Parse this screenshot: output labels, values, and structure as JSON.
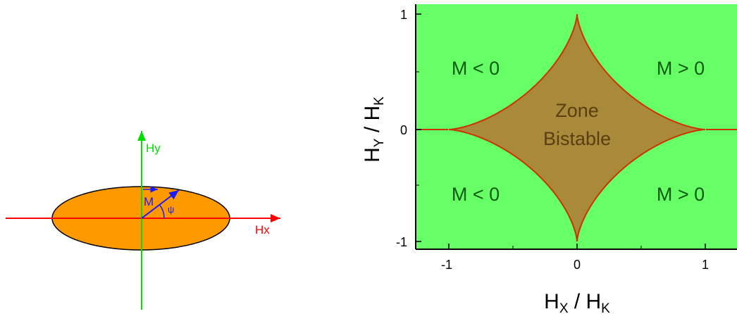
{
  "left_diagram": {
    "x_axis_label": "Hx",
    "y_axis_label": "Hy",
    "vector_label": "M",
    "angle_label": "ψ",
    "colors": {
      "ellipse_fill": "#ff9900",
      "x_axis": "#ff0000",
      "y_axis": "#00dd00",
      "vector": "#1a1aff"
    }
  },
  "right_diagram": {
    "zone_label_line1": "Zone",
    "zone_label_line2": "Bistable",
    "quadrant_top_left": "M < 0",
    "quadrant_top_right": "M > 0",
    "quadrant_bottom_left": "M < 0",
    "quadrant_bottom_right": "M > 0",
    "x_axis": {
      "main": "H",
      "sub": "X",
      "sep": " / H",
      "sub2": "K"
    },
    "y_axis": {
      "main": "H",
      "sub": "Y",
      "sep": " / H",
      "sub2": "K"
    },
    "x_ticks": [
      "-1",
      "0",
      "1"
    ],
    "y_ticks": [
      "1",
      "0",
      "-1"
    ],
    "colors": {
      "background": "#66ff66",
      "zone": "#a88a3a",
      "boundary": "#cc3300"
    }
  }
}
